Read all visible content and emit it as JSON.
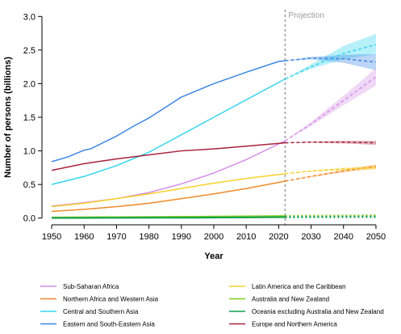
{
  "chart_data": {
    "type": "line",
    "title": "",
    "xlabel": "Year",
    "ylabel": "Number of persons (billions)",
    "xlim": [
      1947,
      2053
    ],
    "ylim": [
      -0.1,
      3.1
    ],
    "xticks": [
      1950,
      1960,
      1970,
      1980,
      1990,
      2000,
      2010,
      2020,
      2030,
      2040,
      2050
    ],
    "yticks": [
      "0.0",
      "0.5",
      "1.0",
      "1.5",
      "2.0",
      "2.5",
      "3.0"
    ],
    "grid": false,
    "projection_start": 2022,
    "projection_label": "Projection",
    "legend_position": "bottom",
    "series": [
      {
        "name": "Sub-Saharan Africa",
        "color": "#d58fe8",
        "x": [
          1950,
          1960,
          1970,
          1980,
          1990,
          2000,
          2010,
          2022,
          2030,
          2040,
          2050
        ],
        "y": [
          0.18,
          0.23,
          0.29,
          0.38,
          0.51,
          0.67,
          0.87,
          1.15,
          1.4,
          1.75,
          2.1
        ],
        "band": [
          [
            2022,
            1.15,
            1.15
          ],
          [
            2030,
            1.37,
            1.43
          ],
          [
            2040,
            1.68,
            1.82
          ],
          [
            2050,
            1.97,
            2.23
          ]
        ]
      },
      {
        "name": "Northern Africa and Western Asia",
        "color": "#f28a2a",
        "x": [
          1950,
          1960,
          1970,
          1980,
          1990,
          2000,
          2010,
          2022,
          2030,
          2040,
          2050
        ],
        "y": [
          0.1,
          0.13,
          0.17,
          0.22,
          0.29,
          0.36,
          0.44,
          0.55,
          0.62,
          0.7,
          0.77
        ],
        "band": [
          [
            2022,
            0.55,
            0.55
          ],
          [
            2030,
            0.61,
            0.63
          ],
          [
            2040,
            0.68,
            0.72
          ],
          [
            2050,
            0.74,
            0.8
          ]
        ]
      },
      {
        "name": "Central and Southern Asia",
        "color": "#35d4ef",
        "x": [
          1950,
          1960,
          1970,
          1980,
          1990,
          2000,
          2010,
          2022,
          2030,
          2040,
          2050
        ],
        "y": [
          0.5,
          0.62,
          0.78,
          0.98,
          1.24,
          1.5,
          1.76,
          2.07,
          2.25,
          2.45,
          2.58
        ],
        "band": [
          [
            2022,
            2.07,
            2.07
          ],
          [
            2030,
            2.22,
            2.29
          ],
          [
            2040,
            2.36,
            2.56
          ],
          [
            2050,
            2.44,
            2.74
          ]
        ]
      },
      {
        "name": "Eastern and South-Eastern Asia",
        "color": "#3d86e6",
        "x": [
          1950,
          1955,
          1960,
          1962,
          1970,
          1975,
          1980,
          1990,
          2000,
          2010,
          2020,
          2022,
          2030,
          2040,
          2050
        ],
        "y": [
          0.84,
          0.91,
          1.01,
          1.03,
          1.22,
          1.36,
          1.49,
          1.8,
          2.0,
          2.17,
          2.33,
          2.34,
          2.38,
          2.37,
          2.32
        ],
        "band": [
          [
            2022,
            2.34,
            2.34
          ],
          [
            2030,
            2.36,
            2.4
          ],
          [
            2040,
            2.31,
            2.43
          ],
          [
            2050,
            2.2,
            2.44
          ]
        ]
      },
      {
        "name": "Latin America and the Caribbean",
        "color": "#f8d22a",
        "x": [
          1950,
          1960,
          1970,
          1980,
          1990,
          2000,
          2010,
          2022,
          2030,
          2040,
          2050
        ],
        "y": [
          0.17,
          0.22,
          0.29,
          0.36,
          0.44,
          0.52,
          0.59,
          0.66,
          0.7,
          0.73,
          0.75
        ],
        "band": [
          [
            2022,
            0.66,
            0.66
          ],
          [
            2030,
            0.69,
            0.71
          ],
          [
            2040,
            0.71,
            0.75
          ],
          [
            2050,
            0.72,
            0.78
          ]
        ]
      },
      {
        "name": "Australia and New Zealand",
        "color": "#7fcc1e",
        "x": [
          1950,
          1960,
          1970,
          1980,
          1990,
          2000,
          2010,
          2022,
          2030,
          2040,
          2050
        ],
        "y": [
          0.01,
          0.013,
          0.015,
          0.017,
          0.02,
          0.023,
          0.027,
          0.031,
          0.034,
          0.036,
          0.038
        ],
        "band": [
          [
            2022,
            0.031,
            0.031
          ],
          [
            2050,
            0.035,
            0.041
          ]
        ]
      },
      {
        "name": "Oceania excluding Australia and New Zealand",
        "color": "#10a050",
        "x": [
          1950,
          1960,
          1970,
          1980,
          1990,
          2000,
          2010,
          2022,
          2030,
          2040,
          2050
        ],
        "y": [
          0.002,
          0.003,
          0.004,
          0.005,
          0.006,
          0.008,
          0.01,
          0.014,
          0.016,
          0.018,
          0.02
        ],
        "band": [
          [
            2022,
            0.014,
            0.014
          ],
          [
            2050,
            0.018,
            0.022
          ]
        ]
      },
      {
        "name": "Europe and Northern America",
        "color": "#a8233e",
        "x": [
          1950,
          1960,
          1970,
          1980,
          1990,
          2000,
          2010,
          2022,
          2030,
          2040,
          2050
        ],
        "y": [
          0.71,
          0.81,
          0.88,
          0.94,
          1.0,
          1.03,
          1.07,
          1.12,
          1.13,
          1.13,
          1.12
        ],
        "band": [
          [
            2022,
            1.12,
            1.12
          ],
          [
            2030,
            1.12,
            1.14
          ],
          [
            2040,
            1.11,
            1.15
          ],
          [
            2050,
            1.09,
            1.15
          ]
        ]
      }
    ]
  }
}
